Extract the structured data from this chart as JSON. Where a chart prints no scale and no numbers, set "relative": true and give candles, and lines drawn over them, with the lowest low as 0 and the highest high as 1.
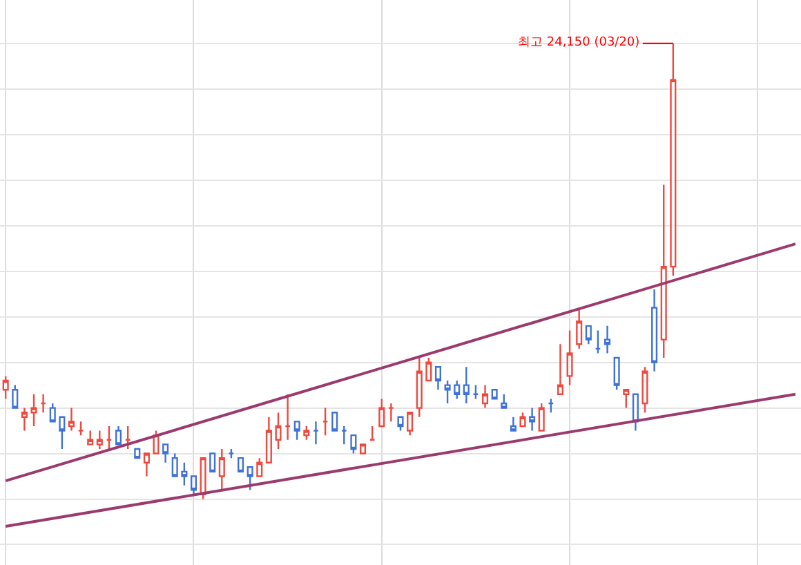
{
  "chart_data": {
    "type": "candlestick",
    "relative": true,
    "grid": true,
    "categories": [
      null,
      null,
      null,
      null,
      null,
      null,
      null,
      null,
      null,
      null,
      null,
      null,
      null,
      null,
      null,
      null,
      null,
      null,
      null,
      null,
      null,
      null,
      null,
      null,
      null,
      null,
      null,
      null,
      null,
      null,
      null,
      null,
      null,
      null,
      null,
      null,
      null,
      null,
      null,
      null,
      null,
      null,
      null,
      null,
      null,
      null,
      null,
      null,
      null,
      null,
      null,
      null,
      null,
      null,
      null,
      null,
      null,
      null,
      null,
      null,
      null,
      null,
      null,
      null,
      null,
      null,
      null,
      null,
      null,
      null,
      null,
      null,
      null,
      null,
      null,
      null,
      null,
      null,
      null,
      null,
      null,
      null,
      null,
      null,
      null
    ],
    "series": [
      {
        "colors": [
          "#f0483e",
          "#3f72d8",
          "#f0483e",
          "#f0483e",
          "#f0483e",
          "#3f72d8",
          "#3f72d8",
          "#f0483e",
          "#f0483e",
          "#f0483e",
          "#f0483e",
          "#f0483e",
          "#3f72d8",
          "#f0483e",
          "#3f72d8",
          "#f0483e",
          "#f0483e",
          "#3f72d8",
          "#3f72d8",
          "#3f72d8",
          "#3f72d8",
          "#f0483e",
          "#3f72d8",
          "#f0483e",
          "#3f72d8",
          "#3f72d8",
          "#3f72d8",
          "#f0483e",
          "#f0483e",
          "#f0483e",
          "#f0483e",
          "#3f72d8",
          "#f0483e",
          "#3f72d8",
          "#f0483e",
          "#3f72d8",
          "#3f72d8",
          "#3f72d8",
          "#f0483e",
          "#f0483e",
          "#f0483e",
          "#f0483e",
          "#3f72d8",
          "#f0483e",
          "#f0483e",
          "#f0483e",
          "#3f72d8",
          "#3f72d8",
          "#3f72d8",
          "#3f72d8",
          "#3f72d8",
          "#f0483e",
          "#3f72d8",
          "#3f72d8",
          "#3f72d8",
          "#f0483e",
          "#3f72d8",
          "#f0483e",
          "#3f72d8",
          "#f0483e",
          "#f0483e",
          "#f0483e",
          "#3f72d8",
          "#3f72d8",
          "#3f72d8",
          "#3f72d8",
          "#f0483e",
          "#3f72d8",
          "#f0483e",
          "#3f72d8",
          "#f0483e",
          "#f0483e",
          null,
          null,
          null,
          null,
          null,
          null,
          null,
          null,
          null,
          null,
          null,
          null,
          null
        ],
        "ohlc": [
          [
            0.24,
            0.27,
            0.22,
            0.26
          ],
          [
            0.24,
            0.25,
            0.2,
            0.2
          ],
          [
            0.18,
            0.2,
            0.15,
            0.19
          ],
          [
            0.19,
            0.23,
            0.16,
            0.2
          ],
          [
            0.21,
            0.23,
            0.19,
            0.21
          ],
          [
            0.2,
            0.21,
            0.17,
            0.17
          ],
          [
            0.18,
            0.18,
            0.11,
            0.15
          ],
          [
            0.16,
            0.2,
            0.15,
            0.17
          ],
          [
            0.15,
            0.17,
            0.14,
            0.15
          ],
          [
            0.12,
            0.15,
            0.12,
            0.13
          ],
          [
            0.12,
            0.15,
            0.11,
            0.13
          ],
          [
            0.13,
            0.16,
            0.11,
            0.13
          ],
          [
            0.15,
            0.16,
            0.12,
            0.12
          ],
          [
            0.13,
            0.16,
            0.11,
            0.13
          ],
          [
            0.11,
            0.11,
            0.09,
            0.09
          ],
          [
            0.08,
            0.1,
            0.05,
            0.1
          ],
          [
            0.1,
            0.15,
            0.1,
            0.14
          ],
          [
            0.12,
            0.12,
            0.08,
            0.1
          ],
          [
            0.09,
            0.1,
            0.05,
            0.05
          ],
          [
            0.06,
            0.08,
            0.03,
            0.05
          ],
          [
            0.05,
            0.05,
            0.01,
            0.02
          ],
          [
            0.01,
            0.09,
            0.0,
            0.09
          ],
          [
            0.1,
            0.1,
            0.06,
            0.06
          ],
          [
            0.05,
            0.11,
            0.02,
            0.09
          ],
          [
            0.1,
            0.11,
            0.09,
            0.1
          ],
          [
            0.09,
            0.09,
            0.06,
            0.06
          ],
          [
            0.07,
            0.07,
            0.02,
            0.05
          ],
          [
            0.05,
            0.09,
            0.05,
            0.08
          ],
          [
            0.08,
            0.18,
            0.08,
            0.15
          ],
          [
            0.13,
            0.19,
            0.11,
            0.16
          ],
          [
            0.16,
            0.23,
            0.13,
            0.16
          ],
          [
            0.17,
            0.17,
            0.13,
            0.15
          ],
          [
            0.14,
            0.16,
            0.13,
            0.15
          ],
          [
            0.15,
            0.17,
            0.12,
            0.15
          ],
          [
            0.17,
            0.2,
            0.14,
            0.17
          ],
          [
            0.19,
            0.19,
            0.15,
            0.15
          ],
          [
            0.15,
            0.16,
            0.12,
            0.15
          ],
          [
            0.14,
            0.14,
            0.1,
            0.11
          ],
          [
            0.1,
            0.12,
            0.1,
            0.12
          ],
          [
            0.13,
            0.16,
            0.13,
            0.13
          ],
          [
            0.16,
            0.22,
            0.16,
            0.2
          ],
          [
            0.2,
            0.21,
            0.17,
            0.2
          ],
          [
            0.18,
            0.18,
            0.15,
            0.16
          ],
          [
            0.15,
            0.19,
            0.14,
            0.19
          ],
          [
            0.2,
            0.31,
            0.18,
            0.28
          ],
          [
            0.26,
            0.31,
            0.26,
            0.3
          ],
          [
            0.29,
            0.29,
            0.24,
            0.26
          ],
          [
            0.25,
            0.26,
            0.21,
            0.24
          ],
          [
            0.25,
            0.26,
            0.22,
            0.23
          ],
          [
            0.25,
            0.29,
            0.21,
            0.23
          ],
          [
            0.23,
            0.25,
            0.22,
            0.23
          ],
          [
            0.21,
            0.25,
            0.2,
            0.23
          ],
          [
            0.24,
            0.24,
            0.22,
            0.22
          ],
          [
            0.21,
            0.23,
            0.2,
            0.2
          ],
          [
            0.16,
            0.18,
            0.15,
            0.15
          ],
          [
            0.16,
            0.19,
            0.16,
            0.18
          ],
          [
            0.18,
            0.2,
            0.15,
            0.17
          ],
          [
            0.15,
            0.21,
            0.15,
            0.2
          ],
          [
            0.21,
            0.22,
            0.19,
            0.21
          ],
          [
            0.23,
            0.34,
            0.23,
            0.25
          ],
          [
            0.27,
            0.37,
            0.25,
            0.32
          ],
          [
            0.34,
            0.42,
            0.33,
            0.39
          ],
          [
            0.38,
            0.38,
            0.34,
            0.35
          ],
          [
            0.33,
            0.37,
            0.32,
            0.33
          ],
          [
            0.35,
            0.38,
            0.32,
            0.34
          ],
          [
            0.31,
            0.31,
            0.24,
            0.25
          ],
          [
            0.23,
            0.24,
            0.2,
            0.24
          ],
          [
            0.23,
            0.23,
            0.15,
            0.17
          ],
          [
            0.21,
            0.29,
            0.19,
            0.28
          ],
          [
            0.42,
            0.46,
            0.28,
            0.3
          ],
          [
            0.35,
            0.69,
            0.31,
            0.51
          ],
          [
            0.51,
            1,
            0.49,
            0.92
          ],
          null,
          null,
          null,
          null,
          null,
          null,
          null,
          null,
          null,
          null,
          null,
          null,
          null
        ]
      },
      {
        "type": "line",
        "color": "#9b3a6e",
        "values": [
          0.04,
          null,
          null,
          null,
          null,
          null,
          null,
          null,
          null,
          null,
          null,
          null,
          null,
          null,
          null,
          null,
          null,
          null,
          null,
          null,
          null,
          null,
          null,
          null,
          null,
          null,
          null,
          null,
          null,
          null,
          null,
          null,
          null,
          null,
          null,
          null,
          null,
          null,
          null,
          null,
          null,
          null,
          null,
          null,
          null,
          null,
          null,
          null,
          null,
          null,
          null,
          null,
          null,
          null,
          null,
          null,
          null,
          null,
          null,
          null,
          null,
          null,
          null,
          null,
          null,
          null,
          null,
          null,
          null,
          null,
          null,
          null,
          null,
          null,
          null,
          null,
          null,
          null,
          null,
          null,
          null,
          null,
          null,
          null,
          0.56
        ]
      },
      {
        "type": "line",
        "color": "#9b3a6e",
        "values": [
          -0.06,
          null,
          null,
          null,
          null,
          null,
          null,
          null,
          null,
          null,
          null,
          null,
          null,
          null,
          null,
          null,
          null,
          null,
          null,
          null,
          null,
          null,
          null,
          null,
          null,
          null,
          null,
          null,
          null,
          null,
          null,
          null,
          null,
          null,
          null,
          null,
          null,
          null,
          null,
          null,
          null,
          null,
          null,
          null,
          null,
          null,
          null,
          null,
          null,
          null,
          null,
          null,
          null,
          null,
          null,
          null,
          null,
          null,
          null,
          null,
          null,
          null,
          null,
          null,
          null,
          null,
          null,
          null,
          null,
          null,
          null,
          null,
          null,
          null,
          null,
          null,
          null,
          null,
          null,
          null,
          null,
          null,
          null,
          null,
          0.23
        ]
      }
    ],
    "annotations": [
      "최고 24,150 (03/20)"
    ]
  }
}
